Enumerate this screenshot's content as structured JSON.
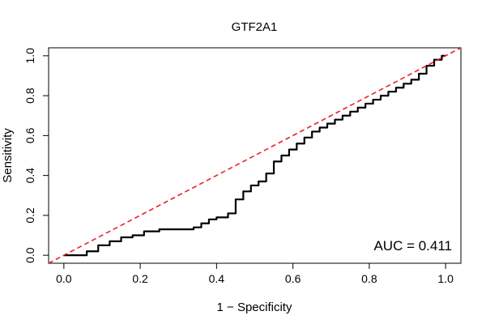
{
  "chart_data": {
    "type": "line",
    "title": "GTF2A1",
    "xlabel": "1 − Specificity",
    "ylabel": "Sensitivity",
    "xlim": [
      -0.04,
      1.04
    ],
    "ylim": [
      -0.04,
      1.04
    ],
    "x_ticks": [
      0.0,
      0.2,
      0.4,
      0.6,
      0.8,
      1.0
    ],
    "y_ticks": [
      0.0,
      0.2,
      0.4,
      0.6,
      0.8,
      1.0
    ],
    "x_tick_labels": [
      "0.0",
      "0.2",
      "0.4",
      "0.6",
      "0.8",
      "1.0"
    ],
    "y_tick_labels": [
      "0.0",
      "0.2",
      "0.4",
      "0.6",
      "0.8",
      "1.0"
    ],
    "annotation": "AUC = 0.411",
    "grid": false,
    "series": [
      {
        "color": "#000000",
        "x": [
          0.0,
          0.01,
          0.06,
          0.09,
          0.12,
          0.15,
          0.18,
          0.21,
          0.25,
          0.3,
          0.34,
          0.36,
          0.38,
          0.4,
          0.42,
          0.43,
          0.45,
          0.47,
          0.49,
          0.51,
          0.53,
          0.55,
          0.57,
          0.59,
          0.61,
          0.63,
          0.65,
          0.67,
          0.69,
          0.71,
          0.73,
          0.75,
          0.77,
          0.79,
          0.81,
          0.83,
          0.85,
          0.87,
          0.89,
          0.91,
          0.93,
          0.95,
          0.97,
          0.99,
          1.0
        ],
        "y": [
          0.0,
          0.0,
          0.02,
          0.05,
          0.07,
          0.09,
          0.1,
          0.12,
          0.13,
          0.13,
          0.14,
          0.16,
          0.18,
          0.19,
          0.19,
          0.21,
          0.28,
          0.32,
          0.35,
          0.37,
          0.41,
          0.47,
          0.5,
          0.53,
          0.56,
          0.59,
          0.62,
          0.64,
          0.66,
          0.68,
          0.7,
          0.72,
          0.74,
          0.76,
          0.78,
          0.8,
          0.82,
          0.84,
          0.86,
          0.88,
          0.91,
          0.95,
          0.98,
          1.0,
          1.0
        ]
      },
      {
        "color": "#e8202a",
        "style": "dashed",
        "x": [
          -0.04,
          1.04
        ],
        "y": [
          -0.04,
          1.04
        ]
      }
    ]
  }
}
